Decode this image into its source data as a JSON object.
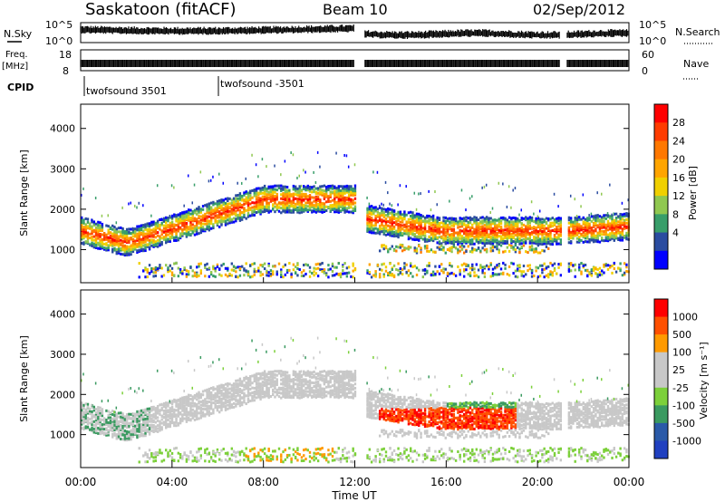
{
  "header": {
    "station": "Saskatoon (fitACF)",
    "beam": "Beam 10",
    "date": "02/Sep/2012"
  },
  "panels": {
    "nsky": {
      "label": "N.Sky",
      "ticks": [
        "10^5",
        "10^0"
      ]
    },
    "nsearch": {
      "label": "N.Search",
      "ticks": [
        "10^5",
        "10^0"
      ]
    },
    "freq": {
      "label_line1": "Freq.",
      "label_line2": "[MHz]",
      "ticks": [
        "18",
        "8"
      ]
    },
    "nave": {
      "label": "Nave",
      "ticks": [
        "60",
        "0"
      ]
    },
    "cpid": {
      "label": "CPID",
      "first": "twofsound 3501",
      "second": "twofsound -3501"
    }
  },
  "chart_data": [
    {
      "type": "heatmap",
      "name": "power-panel",
      "ylabel": "Slant Range [km]",
      "yticks": [
        "4000",
        "3000",
        "2000",
        "1000"
      ],
      "ylim": [
        180,
        4600
      ],
      "colorbar": {
        "label": "Power [dB]",
        "ticks": [
          "28",
          "24",
          "20",
          "16",
          "12",
          "8",
          "4"
        ],
        "colors": [
          "#ff0000",
          "#ff3c00",
          "#ff7800",
          "#ffa500",
          "#f0d000",
          "#90c850",
          "#389e6a",
          "#2a4ca0",
          "#0000ff"
        ]
      },
      "echo_bands": [
        {
          "t_start": 0.0,
          "t_end": 12.0,
          "ranges_km": [
            [
              1600,
              1400
            ],
            [
              1000,
              1600
            ],
            [
              2000,
              2300
            ],
            [
              2300,
              2200
            ]
          ],
          "peak_db": 28
        },
        {
          "t_start": 13.0,
          "t_end": 20.0,
          "ranges_km": [
            [
              1800,
              1500
            ],
            [
              1400,
              1500
            ]
          ],
          "peak_db": 24
        },
        {
          "t_start": 21.3,
          "t_end": 24.0,
          "ranges_km": [
            [
              1200,
              1600
            ]
          ],
          "peak_db": 24
        }
      ]
    },
    {
      "type": "heatmap",
      "name": "velocity-panel",
      "ylabel": "Slant Range [km]",
      "yticks": [
        "4000",
        "3000",
        "2000",
        "1000"
      ],
      "ylim": [
        180,
        4600
      ],
      "xlabel": "Time UT",
      "xticks": [
        "00:00",
        "04:00",
        "08:00",
        "12:00",
        "16:00",
        "20:00",
        "00:00"
      ],
      "xlim": [
        0,
        24
      ],
      "colorbar": {
        "label": "Velocity [m s⁻¹]",
        "ticks": [
          "1000",
          "500",
          "100",
          "25",
          "-25",
          "-100",
          "-500",
          "-1000"
        ],
        "colors": [
          "#ff0000",
          "#ff5000",
          "#ff9a00",
          "#c8c8c8",
          "#c8c8c8",
          "#7cd03a",
          "#3a9a60",
          "#2a5aa8",
          "#2040c0"
        ]
      }
    }
  ]
}
